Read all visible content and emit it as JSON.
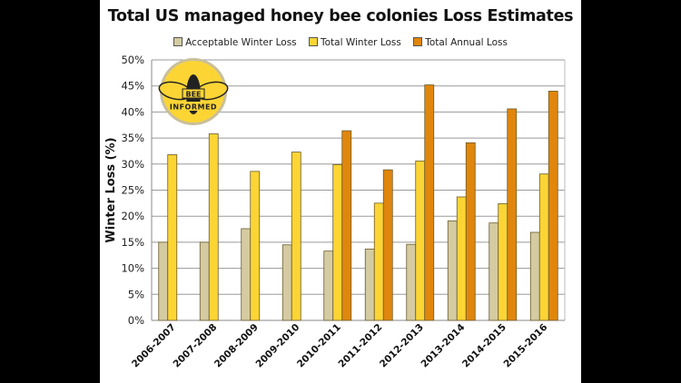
{
  "chart_data": {
    "type": "bar",
    "title": "Total US managed honey bee colonies Loss Estimates",
    "ylabel": "Winter Loss (%)",
    "xlabel": "",
    "ylim": [
      0,
      50
    ],
    "yticks": [
      "0%",
      "5%",
      "10%",
      "15%",
      "20%",
      "25%",
      "30%",
      "35%",
      "40%",
      "45%",
      "50%"
    ],
    "grid": true,
    "legend_placement": "top",
    "categories": [
      "2006-2007",
      "2007-2008",
      "2008-2009",
      "2009-2010",
      "2010-2011",
      "2011-2012",
      "2012-2013",
      "2013-2014",
      "2014-2015",
      "2015-2016"
    ],
    "series": [
      {
        "name": "Acceptable Winter Loss",
        "color": "#d4cba2",
        "values": [
          15.0,
          15.0,
          17.6,
          14.5,
          13.3,
          13.7,
          14.6,
          19.1,
          18.7,
          16.9
        ]
      },
      {
        "name": "Total Winter Loss",
        "color": "#fcd535",
        "values": [
          31.8,
          35.8,
          28.6,
          32.3,
          29.9,
          22.5,
          30.6,
          23.7,
          22.4,
          28.1
        ]
      },
      {
        "name": "Total Annual Loss",
        "color": "#e0860d",
        "values": [
          null,
          null,
          null,
          null,
          36.4,
          28.9,
          45.2,
          34.1,
          40.6,
          44.0
        ]
      }
    ]
  },
  "logo": {
    "text_top": "BEE",
    "text_bottom": "INFORMED"
  }
}
